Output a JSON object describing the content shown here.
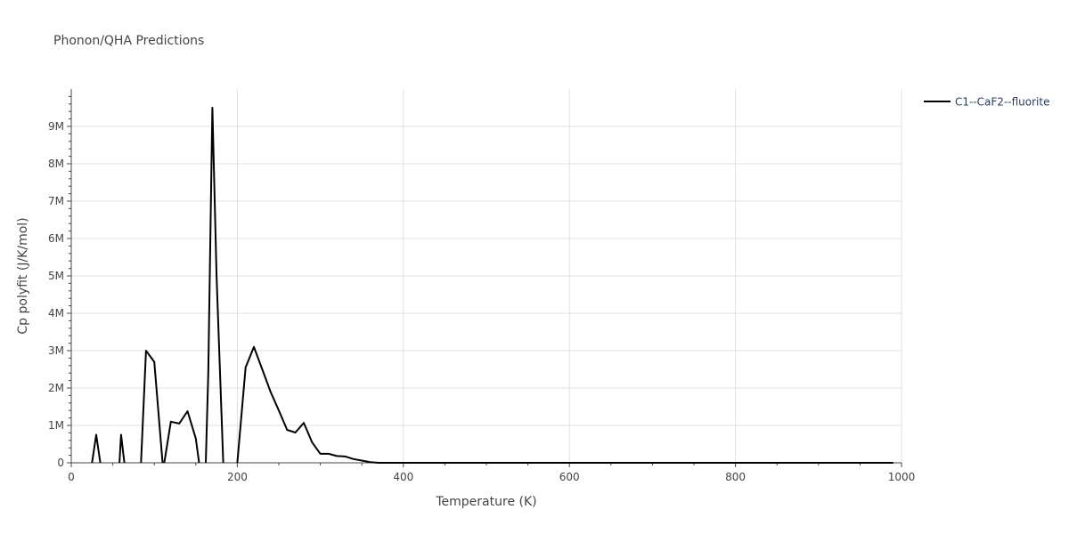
{
  "chart_data": {
    "type": "line",
    "title": "Phonon/QHA Predictions",
    "xlabel": "Temperature (K)",
    "ylabel": "Cp polyfit (J/K/mol)",
    "xlim": [
      0,
      1000
    ],
    "ylim": [
      0,
      10000000
    ],
    "x_ticks": [
      0,
      200,
      400,
      600,
      800,
      1000
    ],
    "x_tick_labels": [
      "0",
      "200",
      "400",
      "600",
      "800",
      "1000"
    ],
    "y_ticks": [
      0,
      1000000,
      2000000,
      3000000,
      4000000,
      5000000,
      6000000,
      7000000,
      8000000,
      9000000
    ],
    "y_tick_labels": [
      "0",
      "1M",
      "2M",
      "3M",
      "4M",
      "5M",
      "6M",
      "7M",
      "8M",
      "9M"
    ],
    "grid": true,
    "legend_position": "top-right",
    "series": [
      {
        "name": "C1--CaF2--fluorite",
        "color": "#000000",
        "segments": [
          [
            [
              25,
              0
            ],
            [
              30,
              750000
            ],
            [
              35,
              0
            ]
          ],
          [
            [
              58,
              0
            ],
            [
              60,
              750000
            ],
            [
              64,
              0
            ]
          ],
          [
            [
              84,
              0
            ],
            [
              90,
              3000000
            ],
            [
              100,
              2700000
            ],
            [
              110,
              0
            ]
          ],
          [
            [
              112,
              0
            ],
            [
              120,
              1100000
            ],
            [
              130,
              1050000
            ],
            [
              140,
              1380000
            ],
            [
              150,
              650000
            ],
            [
              154,
              0
            ]
          ],
          [
            [
              162,
              0
            ],
            [
              165,
              2400000
            ],
            [
              170,
              9500000
            ],
            [
              175,
              5000000
            ],
            [
              183,
              0
            ]
          ],
          [
            [
              200,
              0
            ],
            [
              210,
              2550000
            ],
            [
              220,
              3100000
            ],
            [
              230,
              2500000
            ],
            [
              240,
              1900000
            ],
            [
              250,
              1400000
            ],
            [
              260,
              880000
            ],
            [
              270,
              810000
            ],
            [
              280,
              1070000
            ],
            [
              290,
              550000
            ],
            [
              300,
              240000
            ],
            [
              310,
              240000
            ],
            [
              320,
              180000
            ],
            [
              330,
              170000
            ],
            [
              340,
              100000
            ],
            [
              350,
              60000
            ],
            [
              360,
              20000
            ],
            [
              370,
              0
            ],
            [
              400,
              0
            ],
            [
              500,
              0
            ],
            [
              600,
              0
            ],
            [
              700,
              0
            ],
            [
              800,
              0
            ],
            [
              900,
              0
            ],
            [
              990,
              0
            ]
          ]
        ]
      }
    ]
  }
}
